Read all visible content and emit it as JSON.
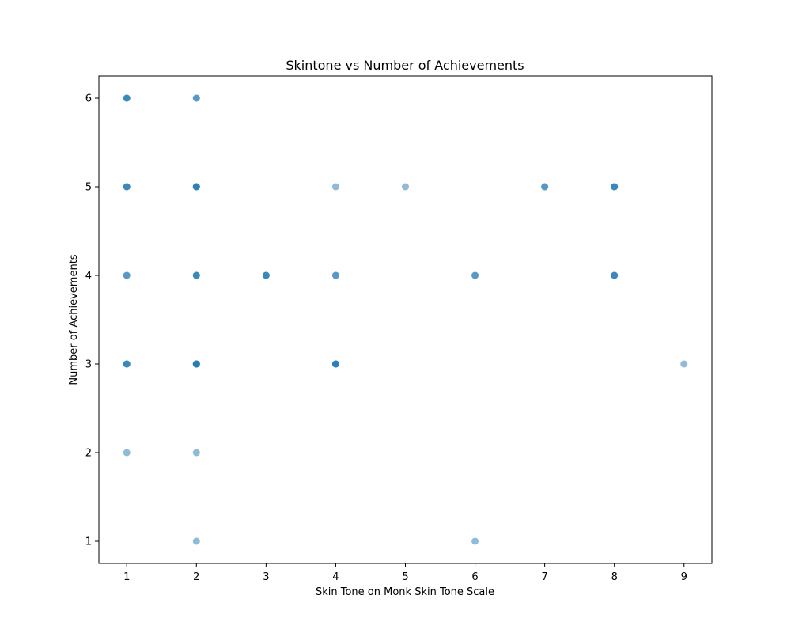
{
  "chart_data": {
    "type": "scatter",
    "title": "Skintone vs Number of Achievements",
    "xlabel": "Skin Tone on Monk Skin Tone Scale",
    "ylabel": "Number of Achievements",
    "xlim": [
      0.6,
      9.4
    ],
    "ylim": [
      0.75,
      6.25
    ],
    "xticks": [
      1,
      2,
      3,
      4,
      5,
      6,
      7,
      8,
      9
    ],
    "yticks": [
      1,
      2,
      3,
      4,
      5,
      6
    ],
    "grid": false,
    "legend": "none",
    "marker_color": "#1f77b4",
    "marker_alpha": 0.5,
    "points": [
      {
        "x": 1,
        "y": 6,
        "n": 3
      },
      {
        "x": 1,
        "y": 5,
        "n": 3
      },
      {
        "x": 1,
        "y": 4,
        "n": 2
      },
      {
        "x": 1,
        "y": 3,
        "n": 3
      },
      {
        "x": 1,
        "y": 2,
        "n": 1
      },
      {
        "x": 2,
        "y": 6,
        "n": 2
      },
      {
        "x": 2,
        "y": 5,
        "n": 4
      },
      {
        "x": 2,
        "y": 4,
        "n": 3
      },
      {
        "x": 2,
        "y": 3,
        "n": 5
      },
      {
        "x": 2,
        "y": 2,
        "n": 1
      },
      {
        "x": 2,
        "y": 1,
        "n": 1
      },
      {
        "x": 3,
        "y": 4,
        "n": 3
      },
      {
        "x": 4,
        "y": 5,
        "n": 1
      },
      {
        "x": 4,
        "y": 4,
        "n": 2
      },
      {
        "x": 4,
        "y": 3,
        "n": 4
      },
      {
        "x": 5,
        "y": 5,
        "n": 1
      },
      {
        "x": 6,
        "y": 4,
        "n": 2
      },
      {
        "x": 6,
        "y": 1,
        "n": 1
      },
      {
        "x": 7,
        "y": 5,
        "n": 2
      },
      {
        "x": 8,
        "y": 5,
        "n": 3
      },
      {
        "x": 8,
        "y": 4,
        "n": 3
      },
      {
        "x": 9,
        "y": 3,
        "n": 1
      }
    ]
  }
}
